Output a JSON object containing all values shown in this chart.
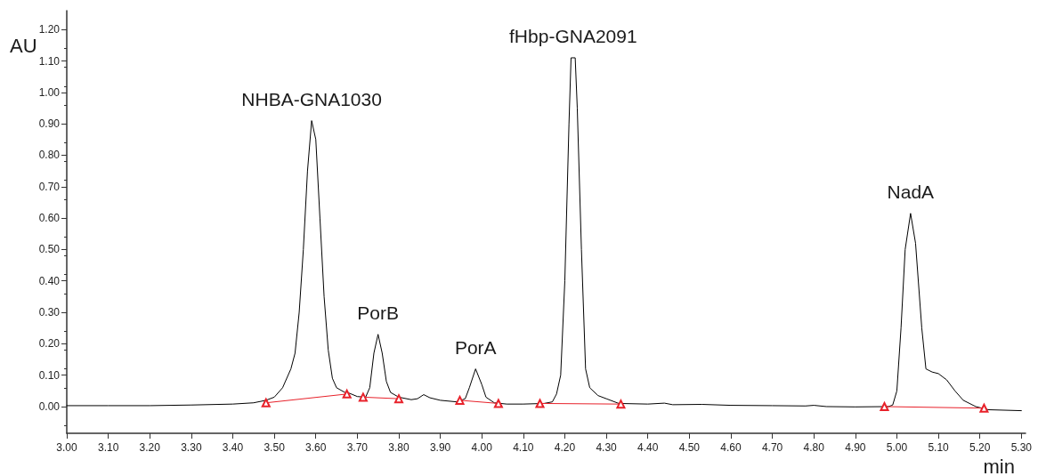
{
  "chart_data": {
    "type": "line",
    "xlabel": "min",
    "ylabel": "AU",
    "xlim": [
      3.0,
      5.31
    ],
    "ylim": [
      -0.085,
      1.26
    ],
    "xticks": [
      {
        "value": 3.0,
        "label": "3.00"
      },
      {
        "value": 3.1,
        "label": "3.10"
      },
      {
        "value": 3.2,
        "label": "3.20"
      },
      {
        "value": 3.3,
        "label": "3.30"
      },
      {
        "value": 3.4,
        "label": "3.40"
      },
      {
        "value": 3.5,
        "label": "3.50"
      },
      {
        "value": 3.6,
        "label": "3.60"
      },
      {
        "value": 3.7,
        "label": "3.70"
      },
      {
        "value": 3.8,
        "label": "3.80"
      },
      {
        "value": 3.9,
        "label": "3.90"
      },
      {
        "value": 4.0,
        "label": "4.00"
      },
      {
        "value": 4.1,
        "label": "4.10"
      },
      {
        "value": 4.2,
        "label": "4.20"
      },
      {
        "value": 4.3,
        "label": "4.30"
      },
      {
        "value": 4.4,
        "label": "4.40"
      },
      {
        "value": 4.5,
        "label": "4.50"
      },
      {
        "value": 4.6,
        "label": "4.60"
      },
      {
        "value": 4.7,
        "label": "4.70"
      },
      {
        "value": 4.8,
        "label": "4.80"
      },
      {
        "value": 4.9,
        "label": "4.90"
      },
      {
        "value": 5.0,
        "label": "5.00"
      },
      {
        "value": 5.1,
        "label": "5.10"
      },
      {
        "value": 5.2,
        "label": "5.20"
      },
      {
        "value": 5.3,
        "label": "5.30"
      }
    ],
    "yticks": [
      {
        "value": 0,
        "label": "0.00"
      },
      {
        "value": 0.1,
        "label": "0.10"
      },
      {
        "value": 0.2,
        "label": "0.20"
      },
      {
        "value": 0.3,
        "label": "0.30"
      },
      {
        "value": 0.4,
        "label": "0.40"
      },
      {
        "value": 0.5,
        "label": "0.50"
      },
      {
        "value": 0.6,
        "label": "0.60"
      },
      {
        "value": 0.7,
        "label": "0.70"
      },
      {
        "value": 0.8,
        "label": "0.80"
      },
      {
        "value": 0.9,
        "label": "0.90"
      },
      {
        "value": 1.0,
        "label": "1.00"
      },
      {
        "value": 1.1,
        "label": "1.10"
      },
      {
        "value": 1.2,
        "label": "1.20"
      }
    ],
    "grid": false,
    "series": [
      {
        "type": "line",
        "color": "#000000",
        "marker": "none",
        "line_style": "solid",
        "x": [
          3.0,
          3.1,
          3.2,
          3.3,
          3.4,
          3.45,
          3.48,
          3.5,
          3.52,
          3.54,
          3.55,
          3.56,
          3.57,
          3.58,
          3.59,
          3.6,
          3.61,
          3.62,
          3.63,
          3.64,
          3.65,
          3.67,
          3.68,
          3.7,
          3.72,
          3.73,
          3.74,
          3.75,
          3.76,
          3.77,
          3.78,
          3.8,
          3.83,
          3.845,
          3.86,
          3.875,
          3.9,
          3.94,
          3.96,
          3.97,
          3.985,
          4.0,
          4.01,
          4.03,
          4.06,
          4.1,
          4.15,
          4.17,
          4.18,
          4.19,
          4.2,
          4.21,
          4.215,
          4.225,
          4.23,
          4.24,
          4.25,
          4.26,
          4.28,
          4.3,
          4.33,
          4.4,
          4.44,
          4.46,
          4.53,
          4.6,
          4.7,
          4.78,
          4.8,
          4.83,
          4.9,
          4.98,
          4.99,
          5.0,
          5.01,
          5.02,
          5.033,
          5.045,
          5.06,
          5.07,
          5.085,
          5.1,
          5.12,
          5.14,
          5.16,
          5.19,
          5.22,
          5.3
        ],
        "values": [
          0.003,
          0.003,
          0.003,
          0.005,
          0.008,
          0.012,
          0.02,
          0.03,
          0.06,
          0.12,
          0.17,
          0.3,
          0.5,
          0.75,
          0.91,
          0.85,
          0.6,
          0.35,
          0.18,
          0.09,
          0.06,
          0.045,
          0.043,
          0.032,
          0.03,
          0.06,
          0.17,
          0.23,
          0.17,
          0.08,
          0.045,
          0.03,
          0.022,
          0.025,
          0.038,
          0.028,
          0.02,
          0.015,
          0.025,
          0.06,
          0.12,
          0.07,
          0.03,
          0.012,
          0.008,
          0.008,
          0.01,
          0.015,
          0.04,
          0.1,
          0.4,
          0.9,
          1.11,
          1.11,
          0.95,
          0.5,
          0.12,
          0.06,
          0.035,
          0.025,
          0.01,
          0.008,
          0.011,
          0.006,
          0.007,
          0.004,
          0.003,
          0.002,
          0.004,
          0.0,
          -0.001,
          0.0,
          0.005,
          0.05,
          0.25,
          0.5,
          0.615,
          0.52,
          0.25,
          0.12,
          0.11,
          0.105,
          0.085,
          0.05,
          0.02,
          0.0,
          -0.01,
          -0.013
        ]
      },
      {
        "type": "line",
        "color": "#e8212a",
        "marker": "triangle",
        "line_style": "solid",
        "x": [
          3.48,
          3.675
        ],
        "values": [
          0.012,
          0.04
        ]
      },
      {
        "type": "line",
        "color": "#e8212a",
        "marker": "triangle",
        "line_style": "solid",
        "x": [
          3.714,
          3.8
        ],
        "values": [
          0.03,
          0.025
        ]
      },
      {
        "type": "line",
        "color": "#e8212a",
        "marker": "triangle",
        "line_style": "solid",
        "x": [
          3.947,
          4.04
        ],
        "values": [
          0.02,
          0.01
        ]
      },
      {
        "type": "line",
        "color": "#e8212a",
        "marker": "triangle",
        "line_style": "solid",
        "x": [
          4.14,
          4.335
        ],
        "values": [
          0.01,
          0.008
        ]
      },
      {
        "type": "line",
        "color": "#e8212a",
        "marker": "triangle",
        "line_style": "solid",
        "x": [
          4.97,
          5.21
        ],
        "values": [
          0.0,
          -0.005
        ]
      }
    ],
    "annotations": [
      {
        "text": "NHBA-GNA1030",
        "x": 3.59,
        "y": 0.91
      },
      {
        "text": "PorB",
        "x": 3.75,
        "y": 0.23
      },
      {
        "text": "PorA",
        "x": 3.985,
        "y": 0.12
      },
      {
        "text": "fHbp-GNA2091",
        "x": 4.22,
        "y": 1.11
      },
      {
        "text": "NadA",
        "x": 5.033,
        "y": 0.615
      }
    ]
  }
}
